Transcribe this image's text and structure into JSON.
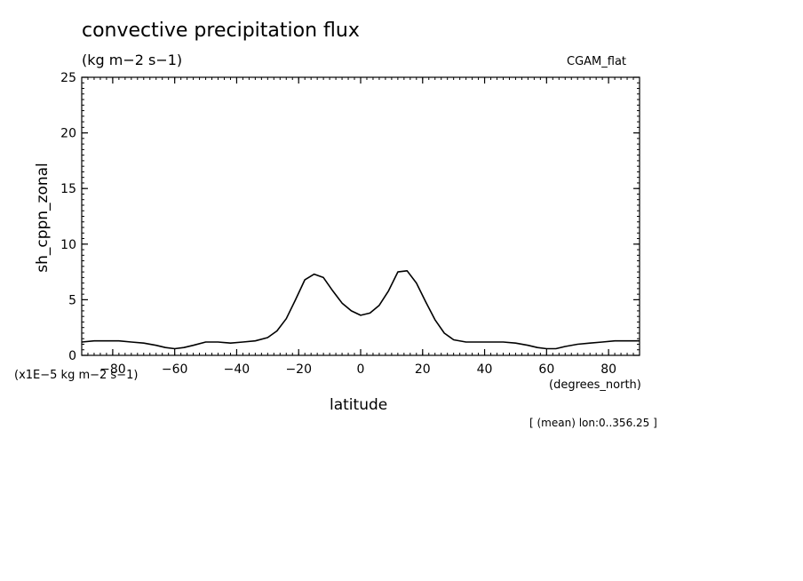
{
  "chart_data": {
    "type": "line",
    "title": "convective precipitation flux",
    "units": "(kg m−2 s−1)",
    "dataset": "CGAM_flat",
    "xlabel": "latitude",
    "x_units": "(degrees_north)",
    "ylabel": "sh_cppn_zonal",
    "y_scale_note": "(x1E−5 kg m−2 s−1)",
    "subset_note": "[ (mean) lon:0..356.25 ]",
    "xlim": [
      -90,
      90
    ],
    "ylim": [
      0,
      25
    ],
    "x_ticks": [
      -80,
      -60,
      -40,
      -20,
      0,
      20,
      40,
      60,
      80
    ],
    "y_ticks": [
      0,
      5,
      10,
      15,
      20,
      25
    ],
    "grid": false,
    "series": [
      {
        "x": [
          -90,
          -86,
          -82,
          -78,
          -74,
          -70,
          -66,
          -63,
          -60,
          -57,
          -54,
          -50,
          -46,
          -42,
          -38,
          -34,
          -30,
          -27,
          -24,
          -21,
          -18,
          -15,
          -12,
          -9,
          -6,
          -3,
          0,
          3,
          6,
          9,
          12,
          15,
          18,
          21,
          24,
          27,
          30,
          34,
          38,
          42,
          46,
          50,
          54,
          57,
          60,
          63,
          66,
          70,
          74,
          78,
          82,
          86,
          90
        ],
        "y": [
          1.2,
          1.3,
          1.3,
          1.3,
          1.2,
          1.1,
          0.9,
          0.7,
          0.6,
          0.7,
          0.9,
          1.2,
          1.2,
          1.1,
          1.2,
          1.3,
          1.6,
          2.2,
          3.3,
          5.0,
          6.8,
          7.3,
          7.0,
          5.8,
          4.7,
          4.0,
          3.6,
          3.8,
          4.5,
          5.8,
          7.5,
          7.6,
          6.5,
          4.8,
          3.2,
          2.0,
          1.4,
          1.2,
          1.2,
          1.2,
          1.2,
          1.1,
          0.9,
          0.7,
          0.6,
          0.6,
          0.8,
          1.0,
          1.1,
          1.2,
          1.3,
          1.3,
          1.3
        ]
      }
    ]
  }
}
